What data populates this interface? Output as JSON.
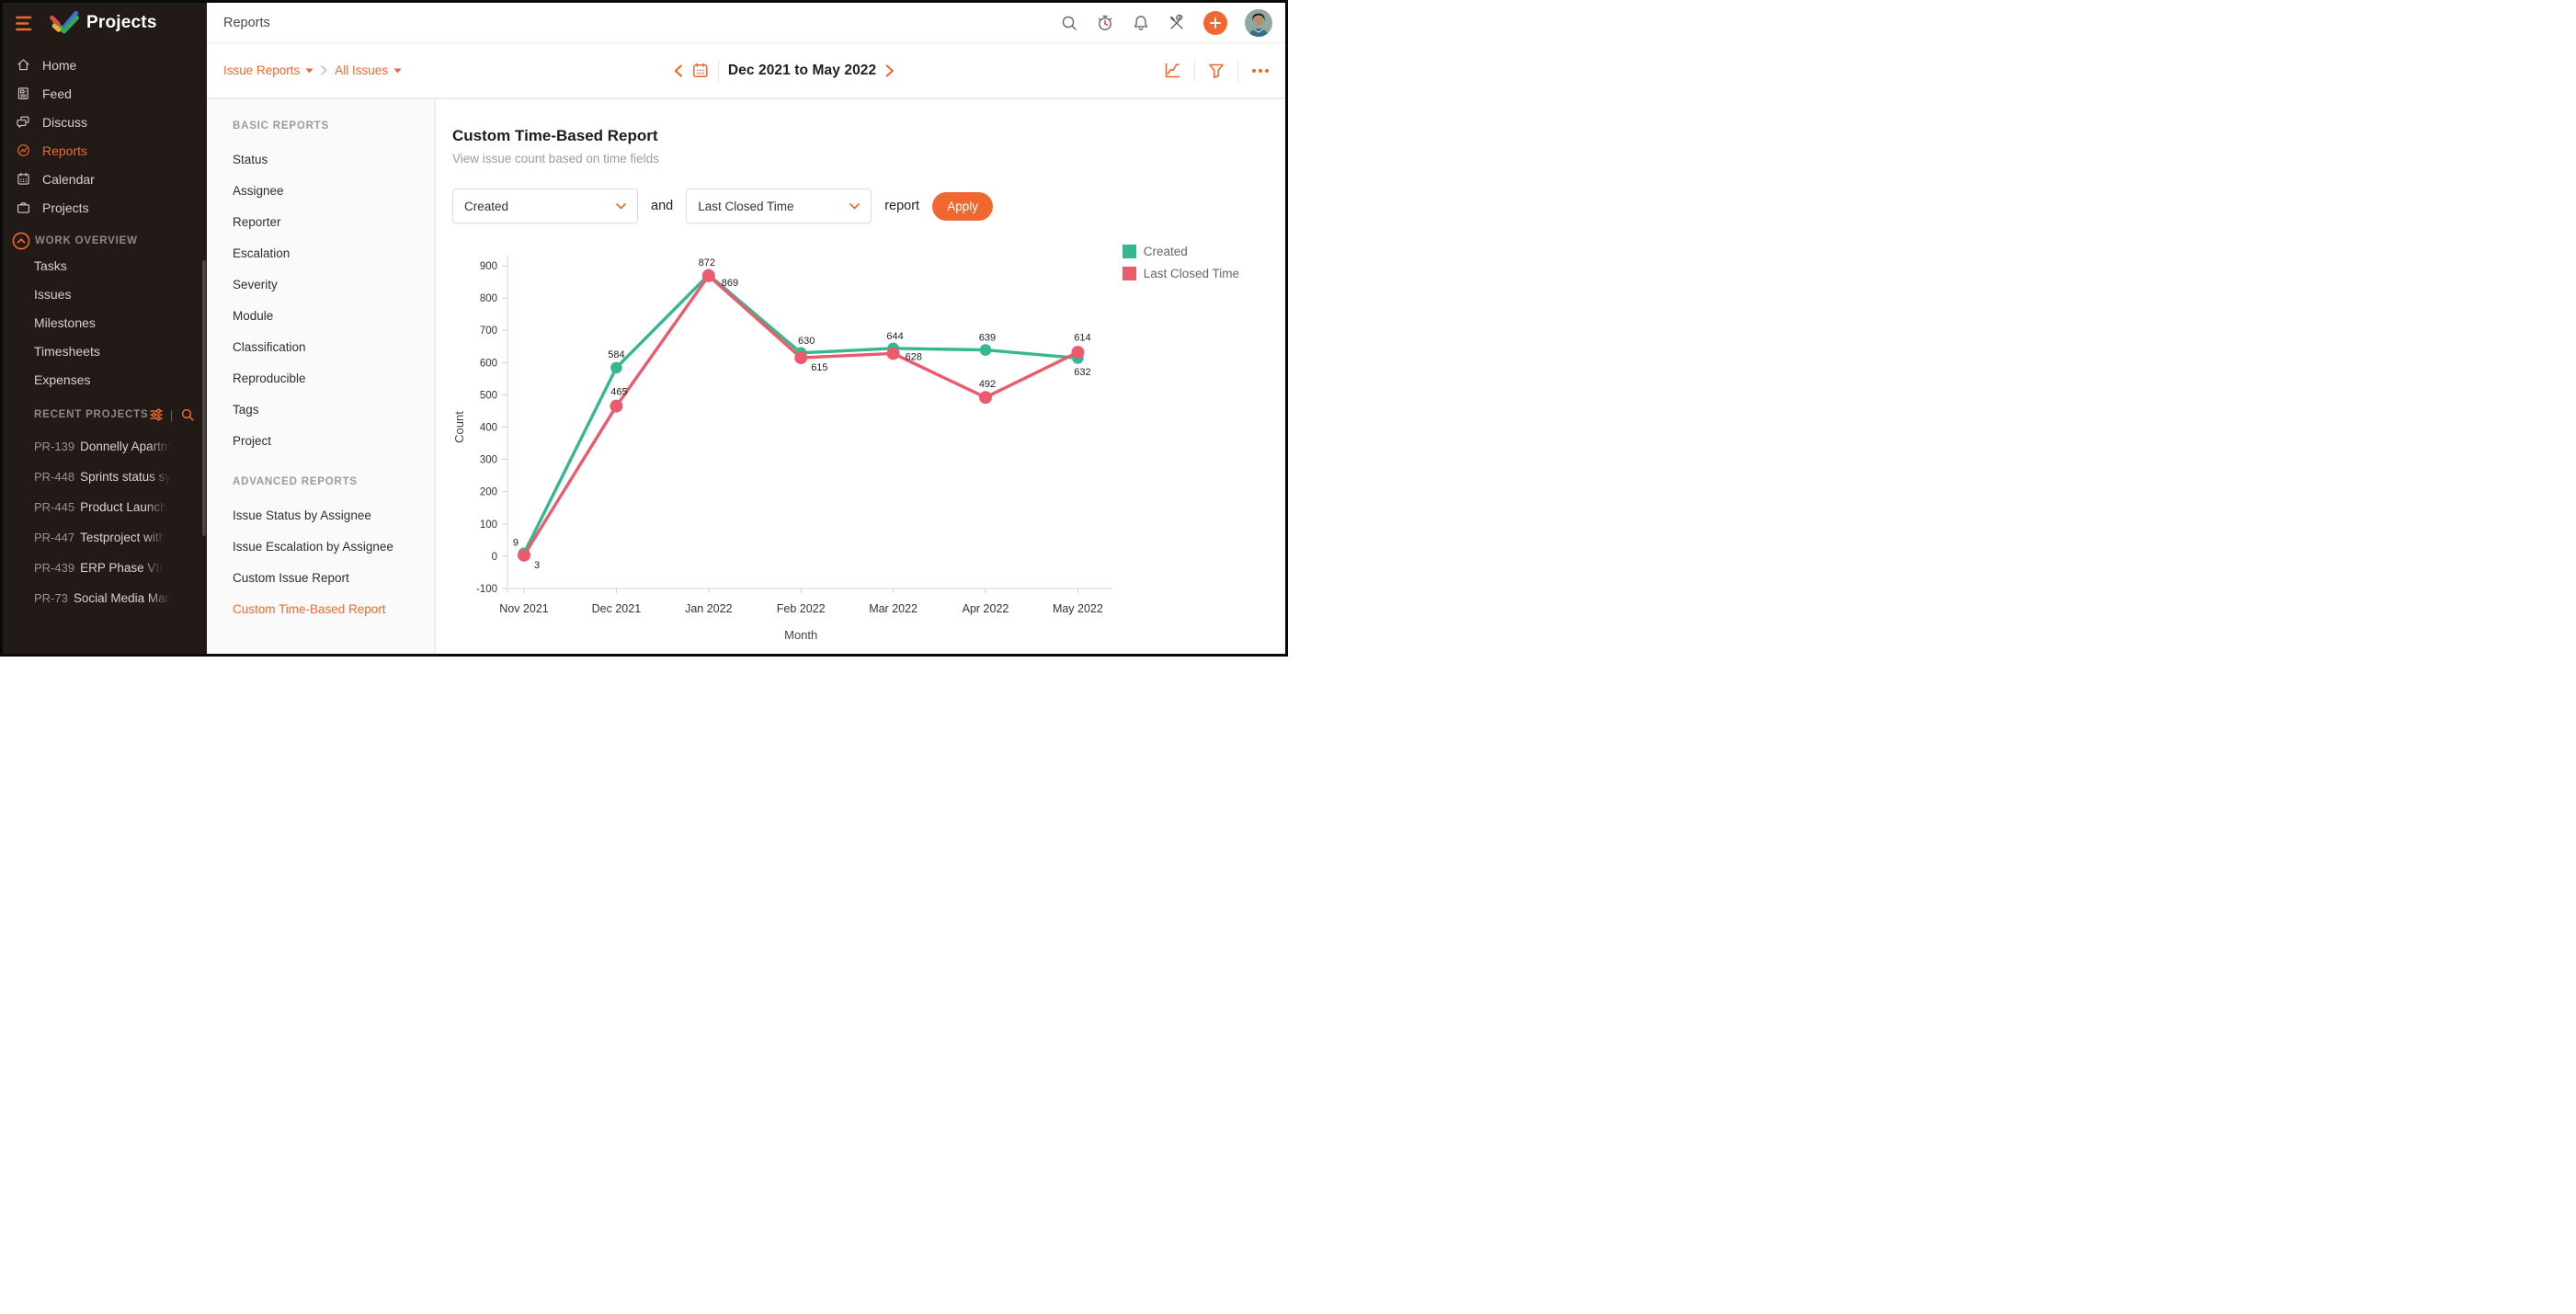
{
  "colors": {
    "accent": "#F0682F",
    "sidebar_bg": "#211A16",
    "series_created": "#35B78F",
    "series_last_closed": "#EC5B6D"
  },
  "sidebar": {
    "logo_title": "Projects",
    "nav": [
      {
        "label": "Home",
        "icon": "home-icon",
        "active": false
      },
      {
        "label": "Feed",
        "icon": "feed-icon",
        "active": false
      },
      {
        "label": "Discuss",
        "icon": "discuss-icon",
        "active": false
      },
      {
        "label": "Reports",
        "icon": "reports-icon",
        "active": true
      },
      {
        "label": "Calendar",
        "icon": "calendar-icon",
        "active": false
      },
      {
        "label": "Projects",
        "icon": "briefcase-icon",
        "active": false
      }
    ],
    "work_overview": {
      "header": "WORK OVERVIEW",
      "items": [
        "Tasks",
        "Issues",
        "Milestones",
        "Timesheets",
        "Expenses"
      ]
    },
    "recent_projects": {
      "header": "RECENT PROJECTS",
      "divider": "|",
      "items": [
        {
          "id": "PR-139",
          "name": "Donnelly Apartm"
        },
        {
          "id": "PR-448",
          "name": "Sprints status sy"
        },
        {
          "id": "PR-445",
          "name": "Product Launch"
        },
        {
          "id": "PR-447",
          "name": "Testproject with"
        },
        {
          "id": "PR-439",
          "name": "ERP Phase VII"
        },
        {
          "id": "PR-73",
          "name": "Social Media Man"
        }
      ]
    }
  },
  "topbar": {
    "title": "Reports"
  },
  "toolbar": {
    "breadcrumb_1": "Issue Reports",
    "breadcrumb_2": "All Issues",
    "date_range": "Dec 2021 to May 2022"
  },
  "report_nav": {
    "basic_header": "BASIC REPORTS",
    "basic": [
      {
        "label": "Status"
      },
      {
        "label": "Assignee"
      },
      {
        "label": "Reporter"
      },
      {
        "label": "Escalation"
      },
      {
        "label": "Severity"
      },
      {
        "label": "Module"
      },
      {
        "label": "Classification"
      },
      {
        "label": "Reproducible"
      },
      {
        "label": "Tags"
      },
      {
        "label": "Project"
      }
    ],
    "advanced_header": "ADVANCED REPORTS",
    "advanced": [
      {
        "label": "Issue Status by Assignee"
      },
      {
        "label": "Issue Escalation by Assignee"
      },
      {
        "label": "Custom Issue Report"
      },
      {
        "label": "Custom Time-Based Report",
        "active": true
      }
    ]
  },
  "main": {
    "title": "Custom Time-Based Report",
    "subtitle": "View issue count based on time fields",
    "dropdown_1": "Created",
    "and_label": "and",
    "dropdown_2": "Last Closed Time",
    "report_label": "report",
    "apply_label": "Apply"
  },
  "chart_data": {
    "type": "line",
    "categories": [
      "Nov 2021",
      "Dec 2021",
      "Jan 2022",
      "Feb 2022",
      "Mar 2022",
      "Apr 2022",
      "May 2022"
    ],
    "series": [
      {
        "name": "Created",
        "color": "#35B78F",
        "values": [
          9,
          584,
          872,
          630,
          644,
          639,
          614
        ]
      },
      {
        "name": "Last Closed Time",
        "color": "#EC5B6D",
        "values": [
          3,
          465,
          869,
          615,
          628,
          492,
          632
        ]
      }
    ],
    "xlabel": "Month",
    "ylabel": "Count",
    "ylim": [
      -100,
      900
    ],
    "ytick_step": 100,
    "grid": false,
    "point_labels": true,
    "legend_position": "top-right"
  }
}
